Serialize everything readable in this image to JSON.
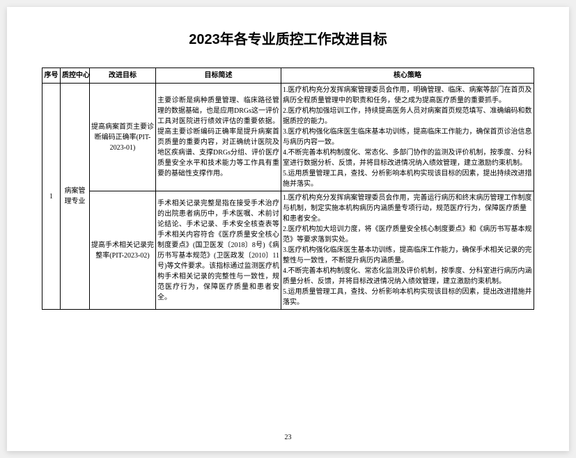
{
  "title": "2023年各专业质控工作改进目标",
  "pageNumber": "23",
  "headers": {
    "seq": "序号",
    "center": "质控中心",
    "goal": "改进目标",
    "desc": "目标简述",
    "strategy": "核心策略"
  },
  "rows": {
    "seq": "1",
    "center": "病案管理专业",
    "goal1": "提高病案首页主要诊断编码正确率(PIT-2023-01)",
    "desc1": "主要诊断是病种质量管理、临床路径管理的数据基础，也是应用DRGs这一评价工具对医院进行绩效评估的重要依据。提高主要诊断编码正确率是提升病案首页质量的重要内容，对正确统计医院及地区疾病谱、支撑DRGs分组、评价医疗质量安全水平和技术能力等工作具有重要的基础性支撑作用。",
    "strategy1": "1.医疗机构充分发挥病案管理委员会作用，明确管理、临床、病案等部门在首页及病历全程质量管理中的职责和任务，使之成为提高医疗质量的重要抓手。\n2.医疗机构加强培训工作，持续提高医务人员对病案首页规范填写、准确编码和数据质控的能力。\n3.医疗机构强化临床医生临床基本功训练，提高临床工作能力，确保首页诊治信息与病历内容一致。\n4.不断完善本机构制度化、常态化、多部门协作的监测及评价机制，按季度、分科室进行数据分析、反馈，并将目标改进情况纳入绩效管理，建立激励约束机制。\n5.运用质量管理工具，查找、分析影响本机构实现该目标的因素，提出持续改进措施并落实。",
    "goal2": "提高手术相关记录完整率(PIT-2023-02)",
    "desc2": "手术相关记录完整是指在接受手术治疗的出院患者病历中，手术医嘱、术前讨论结论、手术记录、手术安全核查表等手术相关内容符合《医疗质量安全核心制度要点》(国卫医发〔2018〕8号)《病历书写基本规范》(卫医政发〔2010〕11号)等文件要求。该指标通过监测医疗机构手术相关记录的完整性与一致性，规范医疗行为，保障医疗质量和患者安全。",
    "strategy2": "1.医疗机构充分发挥病案管理委员会作用，完善运行病历和终末病历管理工作制度与机制，制定实施本机构病历内涵质量专项行动，规范医疗行为，保障医疗质量和患者安全。\n2.医疗机构加大培训力度，将《医疗质量安全核心制度要点》和《病历书写基本规范》等要求落到实处。\n3.医疗机构强化临床医生基本功训练，提高临床工作能力，确保手术相关记录的完整性与一致性，不断提升病历内涵质量。\n4.不断完善本机构制度化、常态化监测及评价机制，按季度、分科室进行病历内涵质量分析、反馈，并将目标改进情况纳入绩效管理，建立激励约束机制。\n5.运用质量管理工具，查找、分析影响本机构实现该目标的因素，提出改进措施并落实。"
  }
}
